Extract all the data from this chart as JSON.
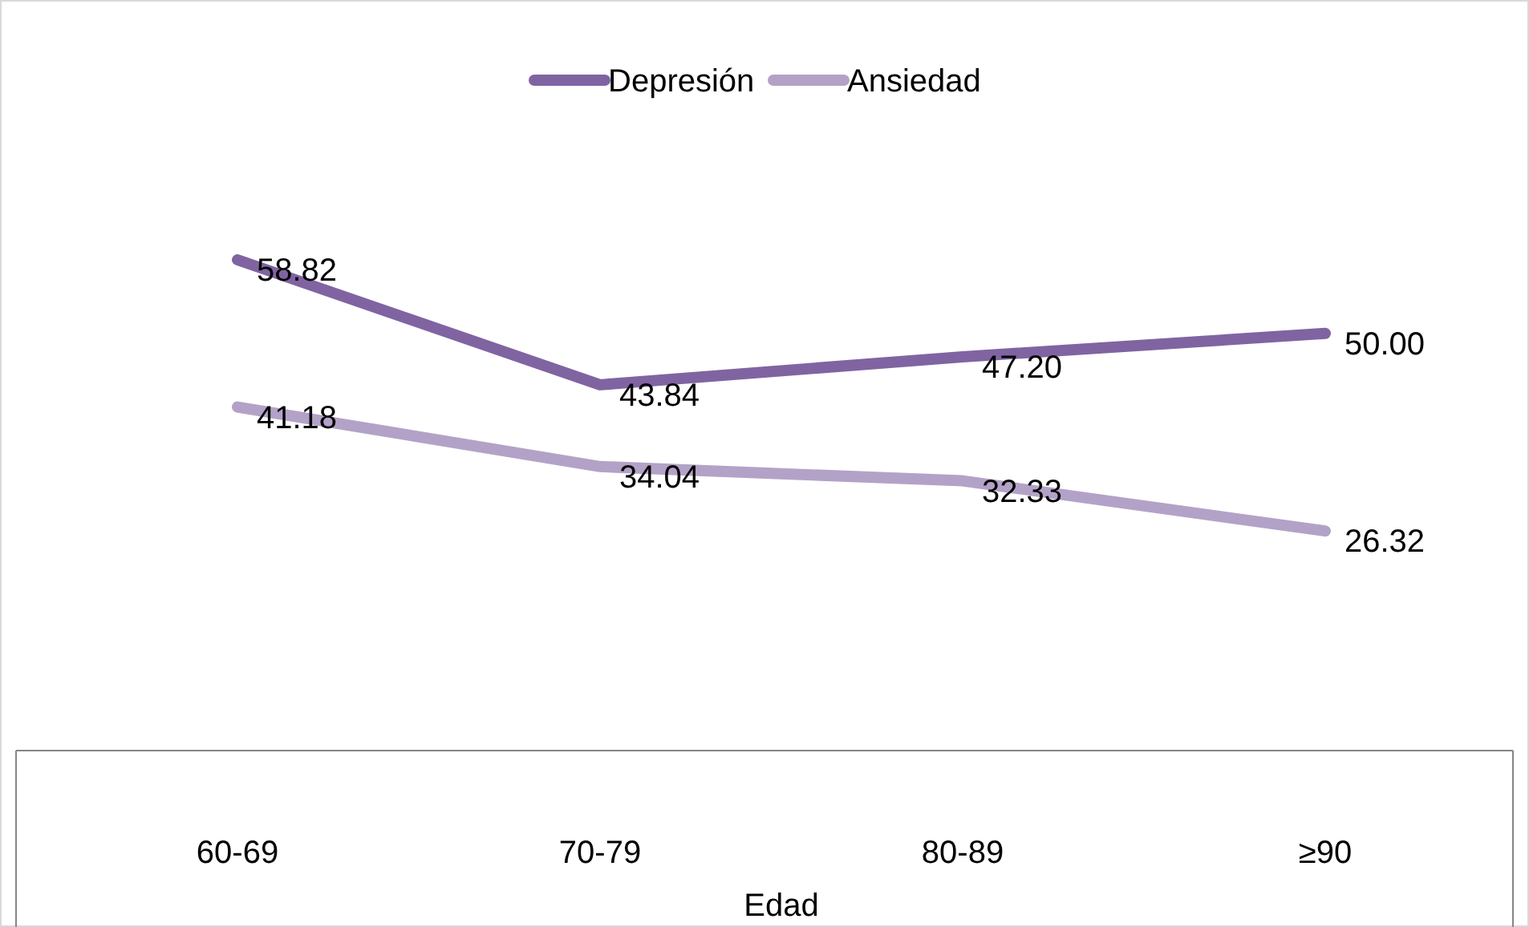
{
  "chart_data": {
    "type": "line",
    "xlabel": "Edad",
    "categories": [
      "60-69",
      "70-79",
      "80-89",
      "≥90"
    ],
    "series": [
      {
        "name": "Depresión",
        "color": "#8064a2",
        "values": [
          58.82,
          43.84,
          47.2,
          50
        ],
        "value_labels": [
          "58.82",
          "43.84",
          "47.20",
          "50.00"
        ]
      },
      {
        "name": "Ansiedad",
        "color": "#b3a2c7",
        "values": [
          41.18,
          34.04,
          32.33,
          26.32
        ],
        "value_labels": [
          "41.18",
          "34.04",
          "32.33",
          "26.32"
        ]
      }
    ],
    "legend": "top",
    "marker": "none",
    "line_style": "solid",
    "tick_labels": "x"
  }
}
